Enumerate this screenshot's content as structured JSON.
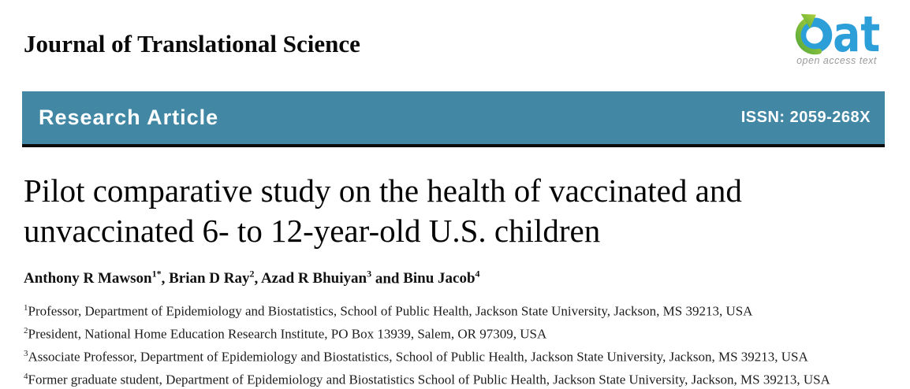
{
  "colors": {
    "banner_bg": "#4288a5",
    "banner_border": "#0b0b0b",
    "logo_blue": "#2d9fd8",
    "logo_green_dark": "#55a93b",
    "logo_green_light": "#b0d23b",
    "logo_gray": "#9a9a9a"
  },
  "masthead": {
    "journal_name": "Journal of Translational Science",
    "logo": {
      "wordmark_suffix": "at",
      "tagline": "open access text"
    }
  },
  "banner": {
    "label": "Research Article",
    "issn": "ISSN: 2059-268X"
  },
  "article": {
    "title_lines": [
      "Pilot comparative study on the health of vaccinated and",
      "unvaccinated 6- to 12-year-old U.S. children"
    ],
    "authors": [
      {
        "name": "Anthony R Mawson",
        "sup": "1*",
        "sep": ", "
      },
      {
        "name": "Brian D Ray",
        "sup": "2",
        "sep": ", "
      },
      {
        "name": "Azad R Bhuiyan",
        "sup": "3",
        "sep": " and "
      },
      {
        "name": "Binu Jacob",
        "sup": "4",
        "sep": ""
      }
    ],
    "affiliations": [
      {
        "sup": "1",
        "text": "Professor, Department of Epidemiology and Biostatistics, School of Public Health, Jackson State University, Jackson, MS 39213, USA"
      },
      {
        "sup": "2",
        "text": "President, National Home Education Research Institute, PO Box 13939, Salem, OR 97309, USA"
      },
      {
        "sup": "3",
        "text": "Associate Professor, Department of Epidemiology and Biostatistics, School of Public Health, Jackson State University, Jackson, MS 39213, USA"
      },
      {
        "sup": "4",
        "text": "Former graduate student, Department of Epidemiology and Biostatistics School of Public Health, Jackson State University, Jackson, MS 39213, USA"
      }
    ]
  }
}
